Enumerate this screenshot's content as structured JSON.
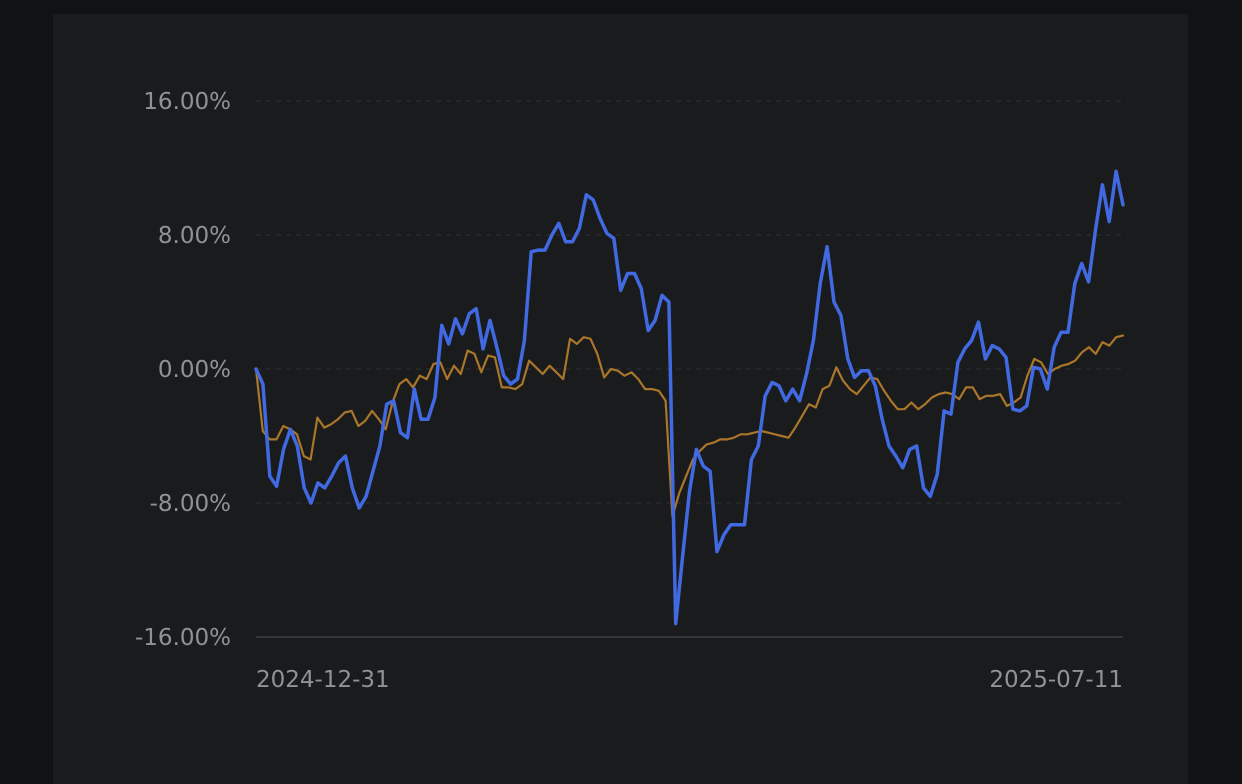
{
  "colors": {
    "page_background": "#111214",
    "panel_background": "#1a1b1d",
    "grid": "#2e3034",
    "axis": "#34363a",
    "tick_text": "#8f9297",
    "series_blue": "#4169e1",
    "series_gold": "#a9762a"
  },
  "chart_data": {
    "type": "line",
    "title": "",
    "xlabel": "",
    "ylabel": "",
    "x_tick_labels": [
      "2024-12-31",
      "2025-07-11"
    ],
    "y_tick_labels": [
      "16.00%",
      "8.00%",
      "0.00%",
      "-8.00%",
      "-16.00%"
    ],
    "ylim": [
      -16,
      16
    ],
    "y_ticks": [
      16,
      8,
      0,
      -8,
      -16
    ],
    "grid": true,
    "legend": false,
    "x_range": [
      "2024-12-31",
      "2025-07-11"
    ],
    "series": [
      {
        "color": "#4169e1",
        "values": [
          0.0,
          -0.9,
          -6.4,
          -7.0,
          -4.8,
          -3.6,
          -4.6,
          -7.1,
          -8.0,
          -6.8,
          -7.1,
          -6.4,
          -5.6,
          -5.2,
          -7.1,
          -8.3,
          -7.6,
          -6.1,
          -4.6,
          -2.1,
          -1.9,
          -3.8,
          -4.1,
          -1.2,
          -3.0,
          -3.0,
          -1.7,
          2.6,
          1.5,
          3.0,
          2.1,
          3.3,
          3.6,
          1.2,
          2.9,
          1.3,
          -0.4,
          -0.9,
          -0.6,
          1.7,
          7.0,
          7.1,
          7.1,
          8.0,
          8.7,
          7.6,
          7.6,
          8.4,
          10.4,
          10.1,
          9.0,
          8.1,
          7.8,
          4.7,
          5.7,
          5.7,
          4.8,
          2.3,
          2.9,
          4.4,
          4.0,
          -15.2,
          -11.2,
          -7.3,
          -4.8,
          -5.8,
          -6.1,
          -10.9,
          -9.9,
          -9.3,
          -9.3,
          -9.3,
          -5.4,
          -4.6,
          -1.6,
          -0.8,
          -1.0,
          -1.9,
          -1.2,
          -1.9,
          -0.3,
          1.7,
          5.1,
          7.3,
          4.0,
          3.2,
          0.6,
          -0.5,
          -0.1,
          -0.1,
          -1.0,
          -3.0,
          -4.6,
          -5.2,
          -5.9,
          -4.8,
          -4.6,
          -7.1,
          -7.6,
          -6.3,
          -2.5,
          -2.7,
          0.4,
          1.2,
          1.7,
          2.8,
          0.6,
          1.4,
          1.2,
          0.7,
          -2.4,
          -2.5,
          -2.2,
          0.1,
          0.0,
          -1.2,
          1.3,
          2.2,
          2.2,
          5.1,
          6.3,
          5.2,
          8.3,
          11.0,
          8.8,
          11.8,
          9.8
        ]
      },
      {
        "color": "#a9762a",
        "values": [
          0.0,
          -3.7,
          -4.2,
          -4.2,
          -3.4,
          -3.6,
          -3.9,
          -5.2,
          -5.4,
          -2.9,
          -3.5,
          -3.3,
          -3.0,
          -2.6,
          -2.5,
          -3.4,
          -3.1,
          -2.5,
          -3.0,
          -3.6,
          -2.0,
          -0.9,
          -0.6,
          -1.1,
          -0.4,
          -0.6,
          0.3,
          0.4,
          -0.6,
          0.2,
          -0.3,
          1.1,
          0.9,
          -0.2,
          0.8,
          0.7,
          -1.1,
          -1.1,
          -1.2,
          -0.9,
          0.5,
          0.1,
          -0.3,
          0.2,
          -0.2,
          -0.6,
          1.8,
          1.5,
          1.9,
          1.8,
          0.9,
          -0.5,
          0.0,
          -0.1,
          -0.4,
          -0.2,
          -0.6,
          -1.2,
          -1.2,
          -1.3,
          -1.9,
          -8.8,
          -7.4,
          -6.4,
          -5.4,
          -4.9,
          -4.5,
          -4.4,
          -4.2,
          -4.2,
          -4.1,
          -3.9,
          -3.9,
          -3.8,
          -3.7,
          -3.8,
          -3.9,
          -4.0,
          -4.1,
          -3.5,
          -2.8,
          -2.1,
          -2.3,
          -1.2,
          -1.0,
          0.1,
          -0.7,
          -1.2,
          -1.5,
          -1.0,
          -0.5,
          -0.6,
          -1.3,
          -1.9,
          -2.4,
          -2.4,
          -2.0,
          -2.4,
          -2.1,
          -1.7,
          -1.5,
          -1.4,
          -1.5,
          -1.8,
          -1.1,
          -1.1,
          -1.8,
          -1.6,
          -1.6,
          -1.5,
          -2.2,
          -2.0,
          -1.7,
          -0.4,
          0.6,
          0.4,
          -0.3,
          0.0,
          0.2,
          0.3,
          0.5,
          1.0,
          1.3,
          0.9,
          1.6,
          1.4,
          1.9,
          2.0
        ]
      }
    ]
  }
}
